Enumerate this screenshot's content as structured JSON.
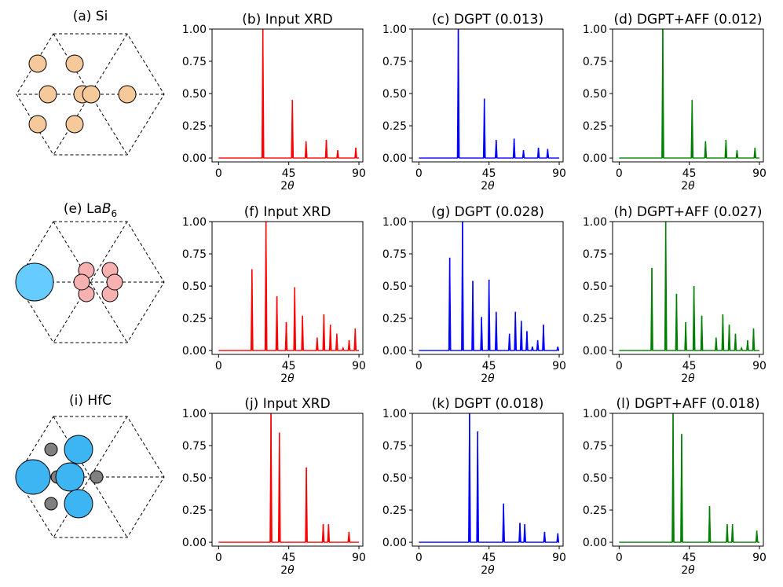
{
  "figure": {
    "structures": [
      {
        "label": "(a) Si",
        "label_main": "(a) Si",
        "label_sub": ""
      },
      {
        "label": "(e) LaB6",
        "label_main": "(e) La",
        "label_italic": "B",
        "label_sub": "6"
      },
      {
        "label": "(i) HfC",
        "label_main": "(i) HfC",
        "label_sub": ""
      }
    ],
    "colors": {
      "input": "#ff0000",
      "dgpt": "#0000ff",
      "dgpt_aff": "#008000",
      "si_atom": "#f5c99a",
      "la_atom": "#66ccff",
      "b_atom": "#f7b1b1",
      "hf_atom": "#3db5f2",
      "c_atom": "#808080"
    }
  },
  "chart_data": [
    {
      "type": "line",
      "title": "(b) Input XRD",
      "xlabel": "2θ",
      "ylabel": "",
      "xlim": [
        -2,
        92
      ],
      "ylim": [
        -0.01,
        1.0
      ],
      "xticks": [
        "0",
        "45",
        "90"
      ],
      "yticks": [
        "0.00",
        "0.25",
        "0.50",
        "0.75",
        "1.00"
      ],
      "color": "input",
      "peaks": [
        [
          28.4,
          1.0
        ],
        [
          47.3,
          0.45
        ],
        [
          56.1,
          0.13
        ],
        [
          69.1,
          0.14
        ],
        [
          76.4,
          0.06
        ],
        [
          88.0,
          0.08
        ]
      ]
    },
    {
      "type": "line",
      "title": "(c) DGPT (0.013)",
      "xlabel": "2θ",
      "ylabel": "",
      "xlim": [
        -2,
        92
      ],
      "ylim": [
        -0.01,
        1.0
      ],
      "xticks": [
        "0",
        "45",
        "90"
      ],
      "yticks": [
        "0.00",
        "0.25",
        "0.50",
        "0.75",
        "1.00"
      ],
      "color": "dgpt",
      "peaks": [
        [
          25.3,
          1.0
        ],
        [
          42.0,
          0.46
        ],
        [
          49.6,
          0.14
        ],
        [
          61.1,
          0.15
        ],
        [
          67.1,
          0.06
        ],
        [
          76.7,
          0.08
        ],
        [
          82.6,
          0.07
        ]
      ]
    },
    {
      "type": "line",
      "title": "(d) DGPT+AFF (0.012)",
      "xlabel": "2θ",
      "ylabel": "",
      "xlim": [
        -2,
        92
      ],
      "ylim": [
        -0.01,
        1.0
      ],
      "xticks": [
        "0",
        "45",
        "90"
      ],
      "yticks": [
        "0.00",
        "0.25",
        "0.50",
        "0.75",
        "1.00"
      ],
      "color": "dgpt_aff",
      "peaks": [
        [
          28.0,
          1.0
        ],
        [
          46.8,
          0.45
        ],
        [
          55.4,
          0.13
        ],
        [
          68.5,
          0.14
        ],
        [
          75.6,
          0.06
        ],
        [
          87.1,
          0.08
        ]
      ]
    },
    {
      "type": "line",
      "title": "(f) Input XRD",
      "xlabel": "2θ",
      "ylabel": "",
      "xlim": [
        -2,
        92
      ],
      "ylim": [
        -0.01,
        1.0
      ],
      "xticks": [
        "0",
        "45",
        "90"
      ],
      "yticks": [
        "0.00",
        "0.25",
        "0.50",
        "0.75",
        "1.00"
      ],
      "color": "input",
      "peaks": [
        [
          21.4,
          0.63
        ],
        [
          30.4,
          1.0
        ],
        [
          37.4,
          0.42
        ],
        [
          43.4,
          0.22
        ],
        [
          48.8,
          0.49
        ],
        [
          53.8,
          0.27
        ],
        [
          63.2,
          0.1
        ],
        [
          67.5,
          0.28
        ],
        [
          71.7,
          0.2
        ],
        [
          75.8,
          0.13
        ],
        [
          79.8,
          0.02
        ],
        [
          83.7,
          0.08
        ],
        [
          87.6,
          0.17
        ]
      ]
    },
    {
      "type": "line",
      "title": "(g) DGPT (0.028)",
      "xlabel": "2θ",
      "ylabel": "",
      "xlim": [
        -2,
        92
      ],
      "ylim": [
        -0.01,
        1.0
      ],
      "xticks": [
        "0",
        "45",
        "90"
      ],
      "yticks": [
        "0.00",
        "0.25",
        "0.50",
        "0.75",
        "1.00"
      ],
      "color": "dgpt",
      "peaks": [
        [
          19.8,
          0.72
        ],
        [
          28.0,
          1.0
        ],
        [
          34.6,
          0.54
        ],
        [
          40.2,
          0.26
        ],
        [
          45.0,
          0.55
        ],
        [
          49.6,
          0.3
        ],
        [
          58.1,
          0.13
        ],
        [
          61.9,
          0.3
        ],
        [
          65.7,
          0.23
        ],
        [
          69.3,
          0.15
        ],
        [
          72.8,
          0.03
        ],
        [
          76.2,
          0.08
        ],
        [
          79.9,
          0.2
        ],
        [
          89.1,
          0.03
        ]
      ]
    },
    {
      "type": "line",
      "title": "(h) DGPT+AFF (0.027)",
      "xlabel": "2θ",
      "ylabel": "",
      "xlim": [
        -2,
        92
      ],
      "ylim": [
        -0.01,
        1.0
      ],
      "xticks": [
        "0",
        "45",
        "90"
      ],
      "yticks": [
        "0.00",
        "0.25",
        "0.50",
        "0.75",
        "1.00"
      ],
      "color": "dgpt_aff",
      "peaks": [
        [
          21.0,
          0.64
        ],
        [
          29.9,
          1.0
        ],
        [
          36.8,
          0.44
        ],
        [
          42.7,
          0.22
        ],
        [
          48.0,
          0.5
        ],
        [
          53.0,
          0.27
        ],
        [
          62.2,
          0.1
        ],
        [
          66.5,
          0.28
        ],
        [
          70.6,
          0.2
        ],
        [
          74.6,
          0.13
        ],
        [
          78.5,
          0.02
        ],
        [
          82.4,
          0.08
        ],
        [
          86.2,
          0.17
        ]
      ]
    },
    {
      "type": "line",
      "title": "(j) Input XRD",
      "xlabel": "2θ",
      "ylabel": "",
      "xlim": [
        -2,
        92
      ],
      "ylim": [
        -0.01,
        1.0
      ],
      "xticks": [
        "0",
        "45",
        "90"
      ],
      "yticks": [
        "0.00",
        "0.25",
        "0.50",
        "0.75",
        "1.00"
      ],
      "color": "input",
      "peaks": [
        [
          33.6,
          1.0
        ],
        [
          39.0,
          0.85
        ],
        [
          56.3,
          0.58
        ],
        [
          67.1,
          0.14
        ],
        [
          70.5,
          0.14
        ],
        [
          83.6,
          0.08
        ]
      ]
    },
    {
      "type": "line",
      "title": "(k) DGPT (0.018)",
      "xlabel": "2θ",
      "ylabel": "",
      "xlim": [
        -2,
        92
      ],
      "ylim": [
        -0.01,
        1.0
      ],
      "xticks": [
        "0",
        "45",
        "90"
      ],
      "yticks": [
        "0.00",
        "0.25",
        "0.50",
        "0.75",
        "1.00"
      ],
      "color": "dgpt",
      "peaks": [
        [
          32.5,
          1.0
        ],
        [
          37.7,
          0.86
        ],
        [
          54.3,
          0.3
        ],
        [
          64.8,
          0.15
        ],
        [
          67.9,
          0.14
        ],
        [
          80.6,
          0.08
        ],
        [
          89.1,
          0.07
        ]
      ]
    },
    {
      "type": "line",
      "title": "(l) DGPT+AFF (0.018)",
      "xlabel": "2θ",
      "ylabel": "",
      "xlim": [
        -2,
        92
      ],
      "ylim": [
        -0.01,
        1.0
      ],
      "xticks": [
        "0",
        "45",
        "90"
      ],
      "yticks": [
        "0.00",
        "0.25",
        "0.50",
        "0.75",
        "1.00"
      ],
      "color": "dgpt_aff",
      "peaks": [
        [
          34.6,
          1.0
        ],
        [
          40.1,
          0.84
        ],
        [
          58.0,
          0.28
        ],
        [
          69.3,
          0.14
        ],
        [
          72.7,
          0.14
        ],
        [
          88.3,
          0.09
        ]
      ]
    }
  ]
}
